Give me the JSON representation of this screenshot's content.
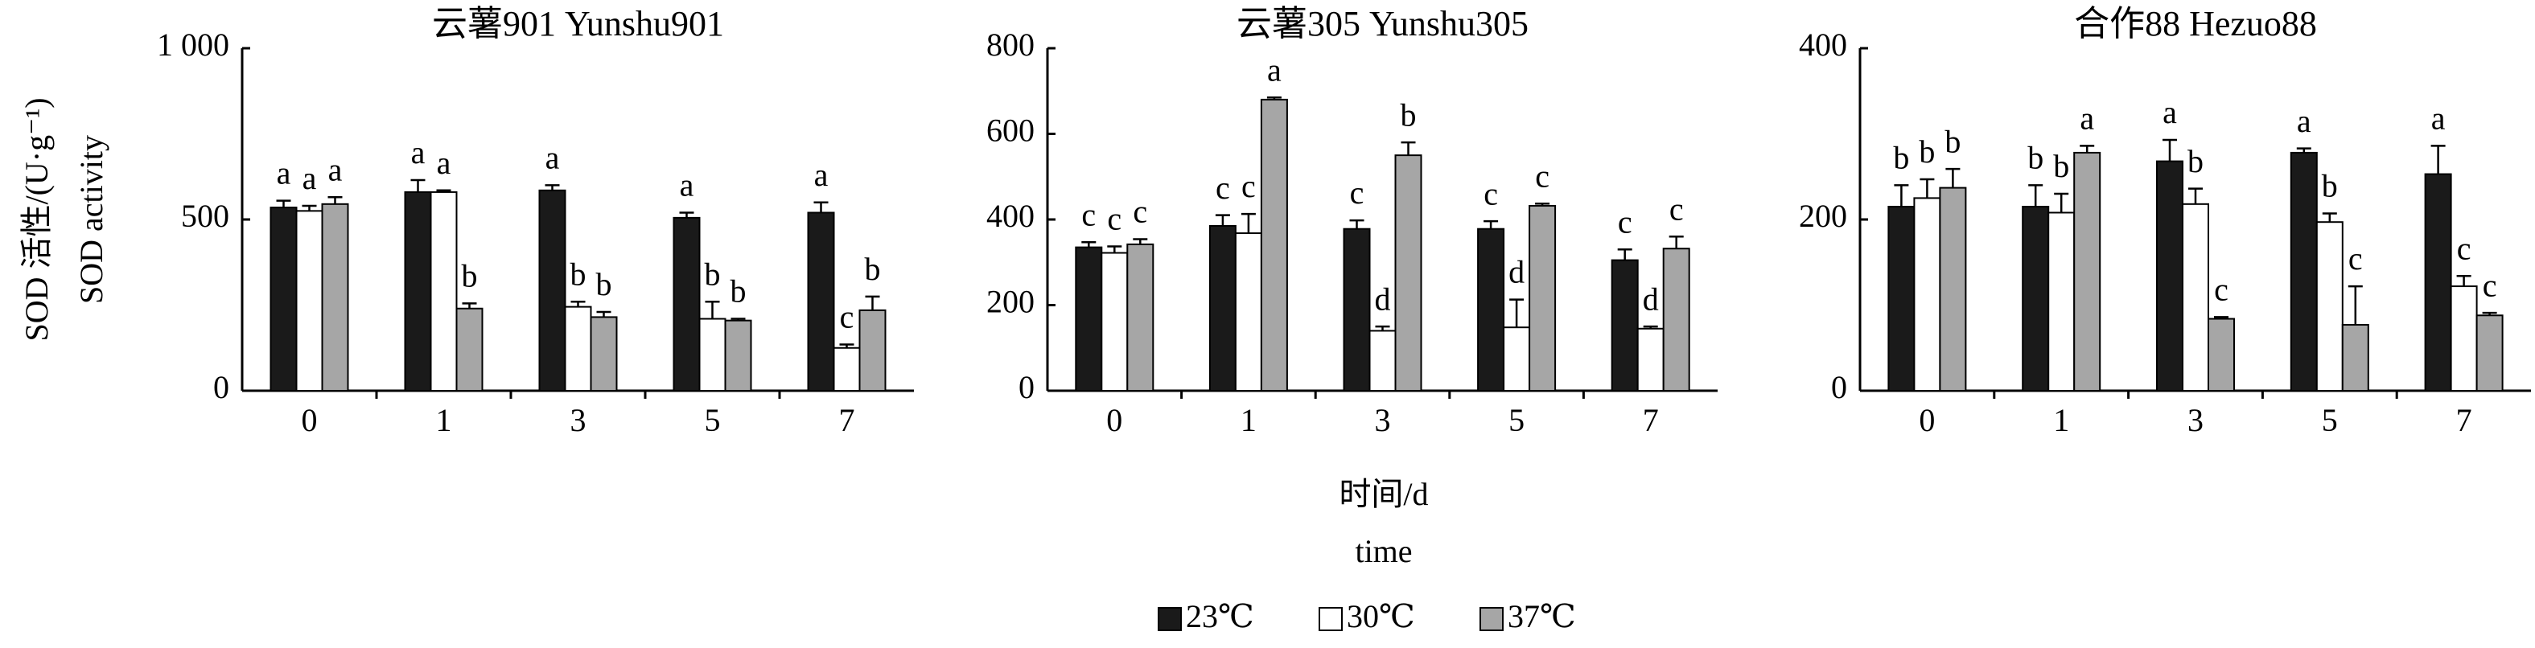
{
  "y_label": [
    "SOD 活性/(U·g⁻¹)",
    "SOD activity"
  ],
  "x_label": [
    "时间/d",
    "time"
  ],
  "chart_data": [
    {
      "type": "bar",
      "title": "云薯901 Yunshu901",
      "categories": [
        "0",
        "1",
        "3",
        "5",
        "7"
      ],
      "ylim": [
        0,
        1000
      ],
      "yticks": [
        0,
        500,
        {
          "value": 1000,
          "label": "1 000"
        }
      ],
      "series": [
        {
          "name": "23℃",
          "color": "#1a1a1a",
          "values": [
            535,
            580,
            585,
            505,
            520
          ],
          "errors": [
            20,
            35,
            15,
            15,
            30
          ],
          "letters": [
            "a",
            "a",
            "a",
            "a",
            "a"
          ]
        },
        {
          "name": "30℃",
          "color": "#ffffff",
          "values": [
            525,
            580,
            245,
            210,
            125
          ],
          "errors": [
            15,
            5,
            15,
            50,
            10
          ],
          "letters": [
            "a",
            "a",
            "b",
            "b",
            "c"
          ]
        },
        {
          "name": "37℃",
          "color": "#a6a6a6",
          "values": [
            545,
            240,
            215,
            205,
            235
          ],
          "errors": [
            20,
            15,
            15,
            5,
            40
          ],
          "letters": [
            "a",
            "b",
            "b",
            "b",
            "b"
          ]
        }
      ]
    },
    {
      "type": "bar",
      "title": "云薯305 Yunshu305",
      "categories": [
        "0",
        "1",
        "3",
        "5",
        "7"
      ],
      "ylim": [
        0,
        800
      ],
      "yticks": [
        0,
        200,
        400,
        600,
        800
      ],
      "series": [
        {
          "name": "23℃",
          "color": "#1a1a1a",
          "values": [
            335,
            385,
            378,
            378,
            305
          ],
          "errors": [
            12,
            25,
            20,
            18,
            25
          ],
          "letters": [
            "c",
            "c",
            "c",
            "c",
            "c"
          ]
        },
        {
          "name": "30℃",
          "color": "#ffffff",
          "values": [
            322,
            368,
            140,
            148,
            145
          ],
          "errors": [
            15,
            45,
            10,
            65,
            5
          ],
          "letters": [
            "c",
            "c",
            "d",
            "d",
            "d"
          ]
        },
        {
          "name": "37℃",
          "color": "#a6a6a6",
          "values": [
            342,
            680,
            550,
            432,
            332
          ],
          "errors": [
            12,
            5,
            30,
            5,
            28
          ],
          "letters": [
            "c",
            "a",
            "b",
            "c",
            "c"
          ]
        }
      ]
    },
    {
      "type": "bar",
      "title": "合作88 Hezuo88",
      "categories": [
        "0",
        "1",
        "3",
        "5",
        "7"
      ],
      "ylim": [
        0,
        400
      ],
      "yticks": [
        0,
        200,
        400
      ],
      "series": [
        {
          "name": "23℃",
          "color": "#1a1a1a",
          "values": [
            215,
            215,
            268,
            278,
            253
          ],
          "errors": [
            25,
            25,
            25,
            5,
            33
          ],
          "letters": [
            "b",
            "b",
            "a",
            "a",
            "a"
          ]
        },
        {
          "name": "30℃",
          "color": "#ffffff",
          "values": [
            225,
            208,
            218,
            197,
            122
          ],
          "errors": [
            22,
            22,
            18,
            10,
            12
          ],
          "letters": [
            "b",
            "b",
            "b",
            "b",
            "c"
          ]
        },
        {
          "name": "37℃",
          "color": "#a6a6a6",
          "values": [
            237,
            278,
            84,
            77,
            88
          ],
          "errors": [
            22,
            8,
            2,
            45,
            3
          ],
          "letters": [
            "b",
            "a",
            "c",
            "c",
            "c"
          ]
        }
      ]
    }
  ]
}
